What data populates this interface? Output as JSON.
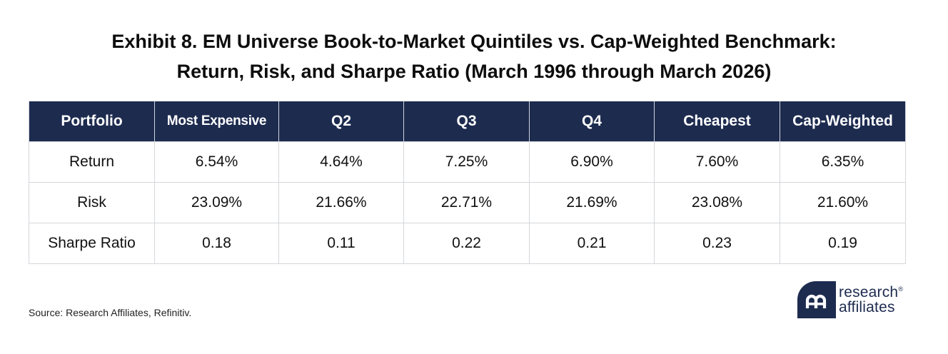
{
  "title": {
    "line1": "Exhibit 8. EM Universe Book-to-Market Quintiles vs. Cap-Weighted Benchmark:",
    "line2": "Return, Risk, and Sharpe Ratio (March 1996 through March 2026)"
  },
  "table": {
    "headers": [
      "Portfolio",
      "Most Expensive",
      "Q2",
      "Q3",
      "Q4",
      "Cheapest",
      "Cap-Weighted"
    ],
    "rows": [
      [
        "Return",
        "6.54%",
        "4.64%",
        "7.25%",
        "6.90%",
        "7.60%",
        "6.35%"
      ],
      [
        "Risk",
        "23.09%",
        "21.66%",
        "22.71%",
        "21.69%",
        "23.08%",
        "21.60%"
      ],
      [
        "Sharpe Ratio",
        "0.18",
        "0.11",
        "0.22",
        "0.21",
        "0.23",
        "0.19"
      ]
    ]
  },
  "source": "Source: Research Affiliates, Refinitiv.",
  "logo": {
    "line1": "research",
    "registered": "®",
    "line2": "affiliates",
    "icon": "ra-monogram-icon"
  },
  "colors": {
    "header_bg": "#1d2b4f",
    "header_text": "#ffffff",
    "border": "#d4d7dc",
    "brand": "#1d2b4f"
  }
}
